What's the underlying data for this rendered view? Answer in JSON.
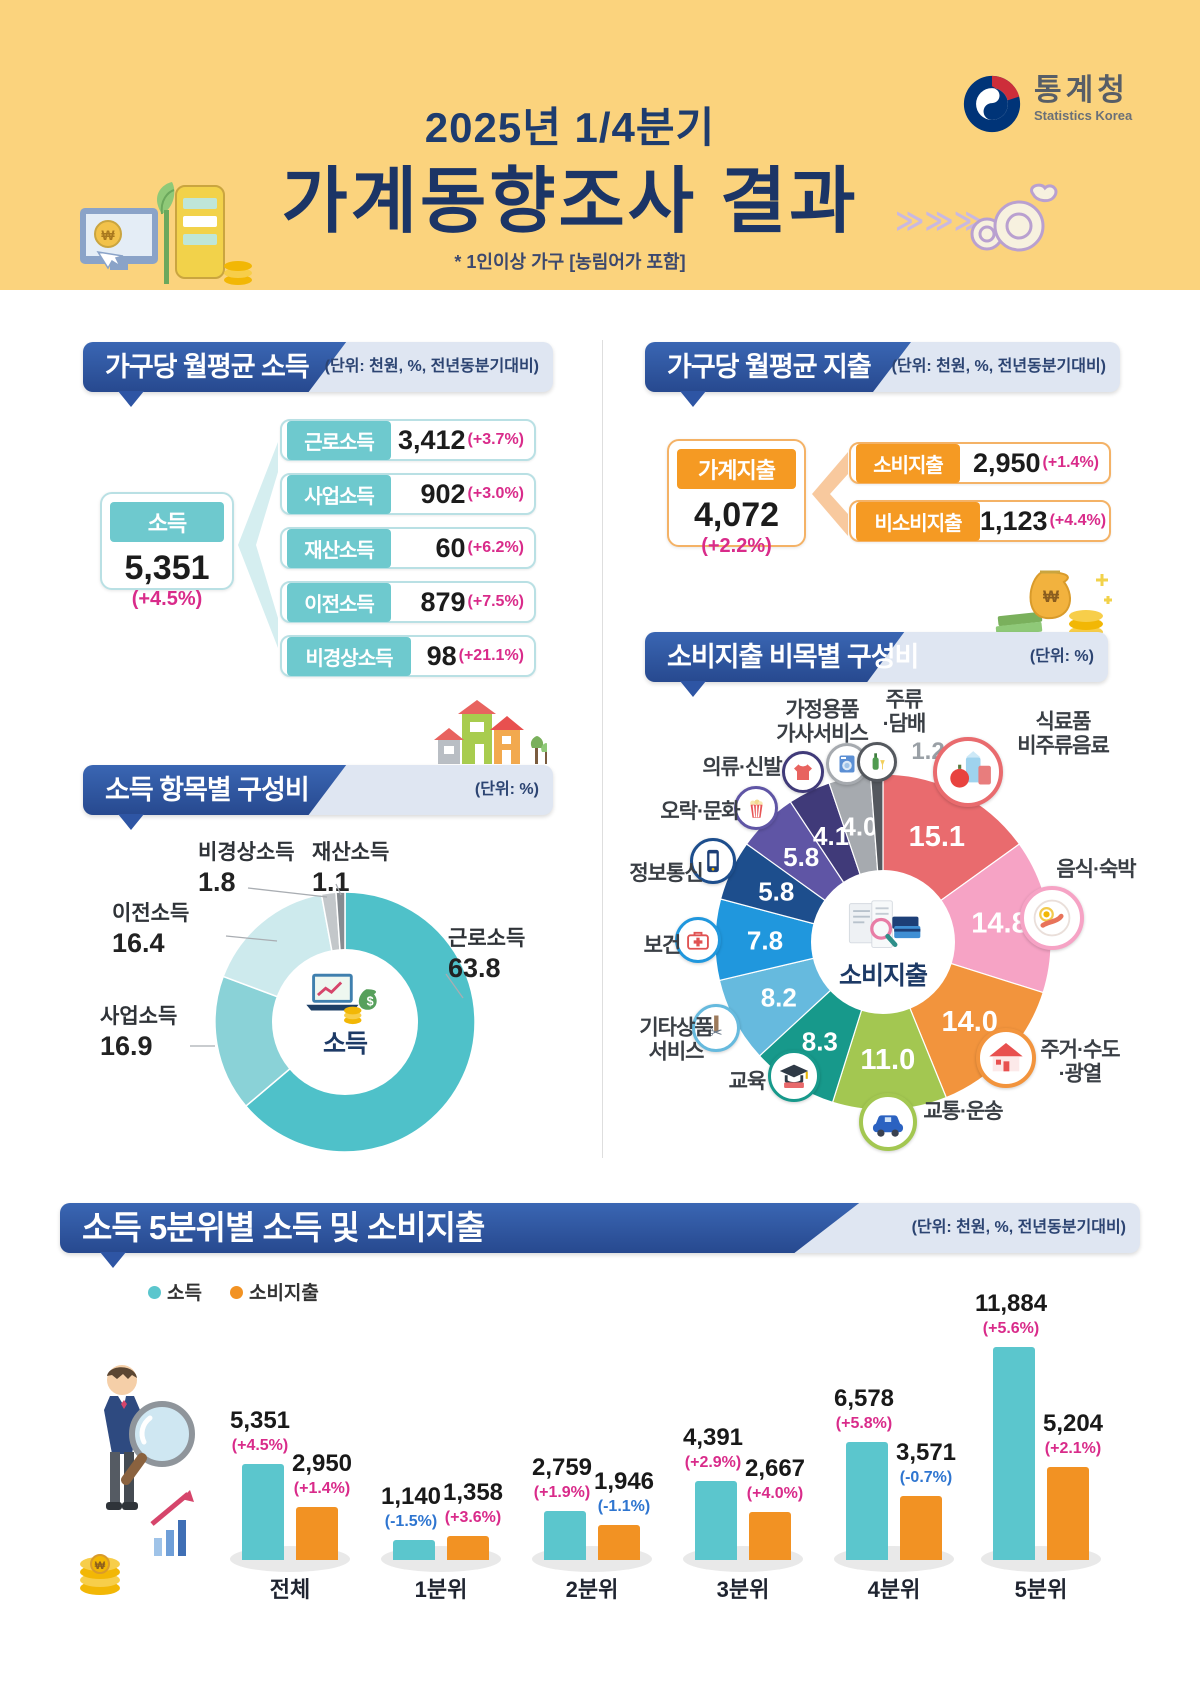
{
  "header": {
    "period": "2025년 1/4분기",
    "title": "가계동향조사 결과",
    "note": "* 1인이상 가구 [농림어가 포함]",
    "agency_name": "통계청",
    "agency_name_en": "Statistics Korea"
  },
  "income": {
    "title": "가구당 월평균 소득",
    "unit": "(단위: 천원, %, 전년동분기대비)",
    "total": {
      "label": "소득",
      "value": "5,351",
      "change": "(+4.5%)"
    },
    "items": [
      {
        "label": "근로소득",
        "value": "3,412",
        "change": "(+3.7%)"
      },
      {
        "label": "사업소득",
        "value": "902",
        "change": "(+3.0%)"
      },
      {
        "label": "재산소득",
        "value": "60",
        "change": "(+6.2%)"
      },
      {
        "label": "이전소득",
        "value": "879",
        "change": "(+7.5%)"
      },
      {
        "label": "비경상소득",
        "value": "98",
        "change": "(+21.1%)"
      }
    ]
  },
  "expenditure": {
    "title": "가구당 월평균 지출",
    "unit": "(단위: 천원, %, 전년동분기대비)",
    "total": {
      "label": "가계지출",
      "value": "4,072",
      "change": "(+2.2%)"
    },
    "items": [
      {
        "label": "소비지출",
        "value": "2,950",
        "change": "(+1.4%)"
      },
      {
        "label": "비소비지출",
        "value": "1,123",
        "change": "(+4.4%)"
      }
    ]
  },
  "quintile": {
    "title": "소득 5분위별 소득 및 소비지출",
    "unit": "(단위: 천원, %, 전년동분기대비)",
    "legend": [
      "소득",
      "소비지출"
    ]
  },
  "colors": {
    "accent_navy": "#2e55a4",
    "positive_pct": "#d92b8a",
    "negative_pct": "#2e75d0",
    "income_teal": "#5bc6cd",
    "expenditure_orange": "#f29223",
    "banner_yellow": "#fbd37d"
  },
  "chart_data": [
    {
      "id": "income-composition",
      "type": "pie",
      "subtype": "donut",
      "title": "소득 항목별 구성비",
      "unit": "(단위: %)",
      "center_label": "소득",
      "slices": [
        {
          "label": "근로소득",
          "value": 63.8,
          "color": "#4fc1c9"
        },
        {
          "label": "사업소득",
          "value": 16.9,
          "color": "#8ad2d7"
        },
        {
          "label": "이전소득",
          "value": 16.4,
          "color": "#cdeaed"
        },
        {
          "label": "비경상소득",
          "value": 1.8,
          "color": "#c3c7ca"
        },
        {
          "label": "재산소득",
          "value": 1.1,
          "color": "#868b90"
        }
      ]
    },
    {
      "id": "expenditure-composition",
      "type": "pie",
      "title": "소비지출 비목별 구성비",
      "unit": "(단위: %)",
      "center_label": "소비지출",
      "slices": [
        {
          "label": "식료품·비주류음료",
          "lines": [
            "식료품",
            "비주류음료"
          ],
          "value": 15.1,
          "color": "#e96b6e",
          "icon": "grocery-icon"
        },
        {
          "label": "음식·숙박",
          "lines": [
            "음식·숙박"
          ],
          "value": 14.8,
          "color": "#f6a3c5",
          "icon": "dining-icon"
        },
        {
          "label": "주거·수도·광열",
          "lines": [
            "주거·수도",
            "·광열"
          ],
          "value": 14.0,
          "color": "#f2943d",
          "icon": "housing-icon"
        },
        {
          "label": "교통·운송",
          "lines": [
            "교통·운송"
          ],
          "value": 11.0,
          "color": "#a3c751",
          "icon": "transport-icon"
        },
        {
          "label": "교육",
          "lines": [
            "교육"
          ],
          "value": 8.3,
          "color": "#17998b",
          "icon": "education-icon"
        },
        {
          "label": "기타상품·서비스",
          "lines": [
            "기타상품",
            "서비스"
          ],
          "value": 8.2,
          "color": "#66bade",
          "icon": "goods-icon"
        },
        {
          "label": "보건",
          "lines": [
            "보건"
          ],
          "value": 7.8,
          "color": "#2097dd",
          "icon": "health-icon"
        },
        {
          "label": "정보통신",
          "lines": [
            "정보통신"
          ],
          "value": 5.8,
          "color": "#1d4e8d",
          "icon": "ict-icon"
        },
        {
          "label": "오락·문화",
          "lines": [
            "오락·문화"
          ],
          "value": 5.8,
          "color": "#5f55a5",
          "icon": "recreation-icon"
        },
        {
          "label": "의류·신발",
          "lines": [
            "의류·신발"
          ],
          "value": 4.1,
          "color": "#403a79",
          "icon": "clothing-icon"
        },
        {
          "label": "가정용품·가사서비스",
          "lines": [
            "가정용품",
            "가사서비스"
          ],
          "value": 4.0,
          "color": "#a6aaaf",
          "icon": "household-icon"
        },
        {
          "label": "주류·담배",
          "lines": [
            "주류",
            "·담배"
          ],
          "value": 1.2,
          "color": "#54585e",
          "icon": "alcohol-icon"
        }
      ]
    },
    {
      "id": "quintile-income-expenditure",
      "type": "bar",
      "title": "소득 5분위별 소득 및 소비지출",
      "unit": "천원, %, 전년동분기대비",
      "categories": [
        "전체",
        "1분위",
        "2분위",
        "3분위",
        "4분위",
        "5분위"
      ],
      "ylim": [
        0,
        12000
      ],
      "series": [
        {
          "name": "소득",
          "color": "#5bc6cd",
          "values": [
            5351,
            1140,
            2759,
            4391,
            6578,
            11884
          ],
          "display": [
            "5,351",
            "1,140",
            "2,759",
            "4,391",
            "6,578",
            "11,884"
          ],
          "changes": [
            "(+4.5%)",
            "(-1.5%)",
            "(+1.9%)",
            "(+2.9%)",
            "(+5.8%)",
            "(+5.6%)"
          ]
        },
        {
          "name": "소비지출",
          "color": "#f29223",
          "values": [
            2950,
            1358,
            1946,
            2667,
            3571,
            5204
          ],
          "display": [
            "2,950",
            "1,358",
            "1,946",
            "2,667",
            "3,571",
            "5,204"
          ],
          "changes": [
            "(+1.4%)",
            "(+3.6%)",
            "(-1.1%)",
            "(+4.0%)",
            "(-0.7%)",
            "(+2.1%)"
          ]
        }
      ]
    }
  ]
}
